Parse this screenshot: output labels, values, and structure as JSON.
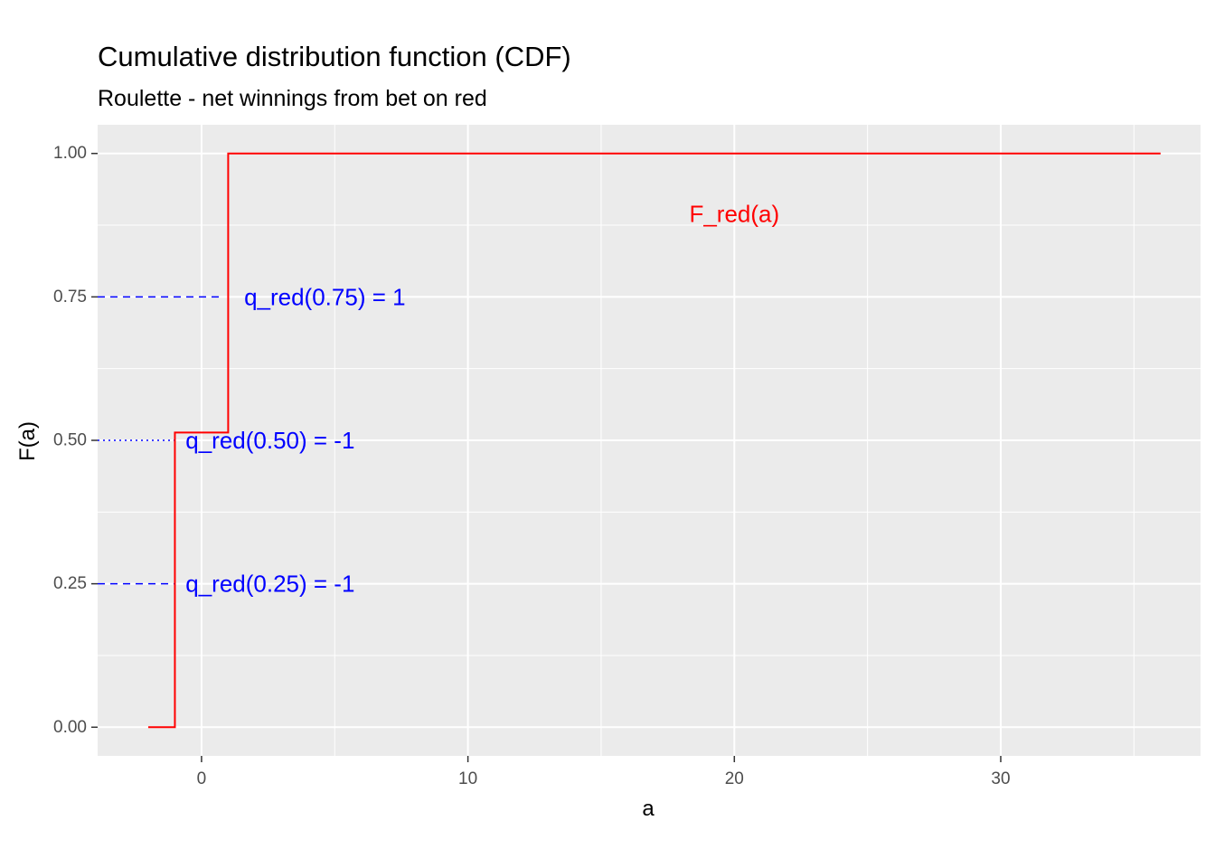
{
  "chart_data": {
    "type": "line",
    "title": "Cumulative distribution function (CDF)",
    "subtitle": "Roulette - net winnings from bet on red",
    "xlabel": "a",
    "ylabel": "F(a)",
    "xlim": [
      -3.9,
      37.5
    ],
    "ylim": [
      -0.05,
      1.05
    ],
    "x_ticks": [
      0,
      10,
      20,
      30
    ],
    "x_tick_labels": [
      "0",
      "10",
      "20",
      "30"
    ],
    "x_minor_ticks": [
      -5,
      5,
      15,
      25,
      35
    ],
    "y_ticks": [
      0,
      0.25,
      0.5,
      0.75,
      1.0
    ],
    "y_tick_labels": [
      "0.00",
      "0.25",
      "0.50",
      "0.75",
      "1.00"
    ],
    "y_minor_ticks": [
      0.125,
      0.375,
      0.625,
      0.875
    ],
    "grid": true,
    "colors": {
      "panel": "#ebebeb",
      "grid": "#ffffff",
      "cdf": "#ff0000",
      "quantile": "#0000ff"
    },
    "series": [
      {
        "name": "F_red(a)",
        "step": true,
        "x": [
          -2,
          -1,
          -1,
          1,
          1,
          36
        ],
        "y": [
          0,
          0,
          0.5135,
          0.5135,
          1.0,
          1.0
        ]
      }
    ],
    "annotations": [
      {
        "label": "F_red(a)",
        "x": 20,
        "y": 0.895,
        "color": "#ff0000",
        "anchor": "middle"
      },
      {
        "label": "q_red(0.75) = 1",
        "x": 1.6,
        "y": 0.75,
        "color": "#0000ff",
        "anchor": "start"
      },
      {
        "label": "q_red(0.50) = -1",
        "x": -0.6,
        "y": 0.5,
        "color": "#0000ff",
        "anchor": "start"
      },
      {
        "label": "q_red(0.25) = -1",
        "x": -0.6,
        "y": 0.25,
        "color": "#0000ff",
        "anchor": "start"
      }
    ],
    "quantile_lines": [
      {
        "p": 0.75,
        "x_end": 0.8,
        "style": "dashed"
      },
      {
        "p": 0.5,
        "x_end": -1,
        "style": "dotted"
      },
      {
        "p": 0.25,
        "x_end": -1,
        "style": "dashed"
      }
    ]
  }
}
